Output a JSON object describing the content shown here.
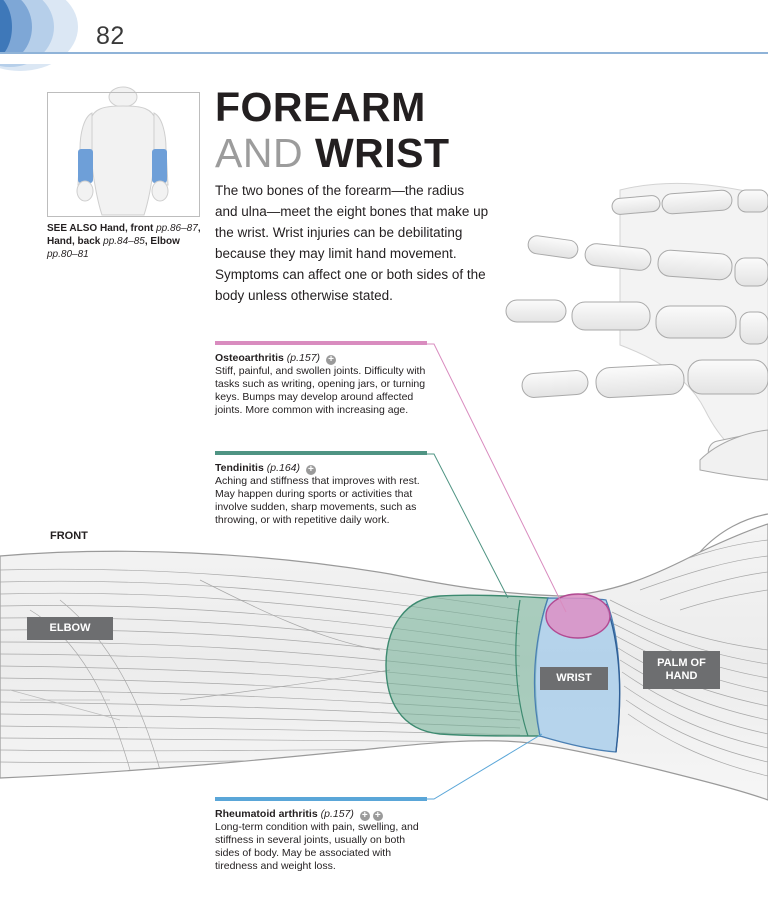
{
  "page": {
    "number": "82"
  },
  "title": {
    "line1": "FOREARM",
    "line2_light": "AND",
    "line2_bold": "WRIST"
  },
  "intro": "The two bones of the forearm—the radius and ulna—meet the eight bones that make up the wrist. Wrist injuries can be debilitating because they may limit hand movement. Symptoms can affect one or both sides of the body unless otherwise stated.",
  "see_also": {
    "label": "SEE ALSO",
    "items": [
      {
        "name": "Hand, front",
        "pages": "pp.86–87"
      },
      {
        "name": "Hand, back",
        "pages": "pp.84–85"
      },
      {
        "name": "Elbow",
        "pages": "pp.80–81"
      }
    ]
  },
  "conditions": [
    {
      "name": "Osteoarthritis",
      "ref": "(p.157)",
      "badges": [
        "+"
      ],
      "color": "#d98cbf",
      "description": "Stiff, painful, and swollen joints. Difficulty with tasks such as writing, opening jars, or turning keys. Bumps may develop around affected joints. More common with increasing age."
    },
    {
      "name": "Tendinitis",
      "ref": "(p.164)",
      "badges": [
        "+"
      ],
      "color": "#4f9483",
      "description": "Aching and stiffness that improves with rest. May happen during sports or activities that involve sudden, sharp movements, such as throwing, or with repetitive daily work."
    },
    {
      "name": "Rheumatoid arthritis",
      "ref": "(p.157)",
      "badges": [
        "+",
        "+"
      ],
      "color": "#5aa6d8",
      "description": "Long-term condition with pain, swelling, and stiffness in several joints, usually on both sides of body. May be associated with tiredness and weight loss."
    }
  ],
  "diagram": {
    "view_label": "FRONT",
    "regions": {
      "elbow": "ELBOW",
      "wrist": "WRIST",
      "palm": "PALM OF HAND"
    },
    "colors": {
      "tendinitis": "#6fae93",
      "rheumatoid": "#9cc7ea",
      "osteoarthritis": "#dd8fc6",
      "label_bg": "#6d6e70",
      "header_accent": "#3e78b9"
    }
  }
}
